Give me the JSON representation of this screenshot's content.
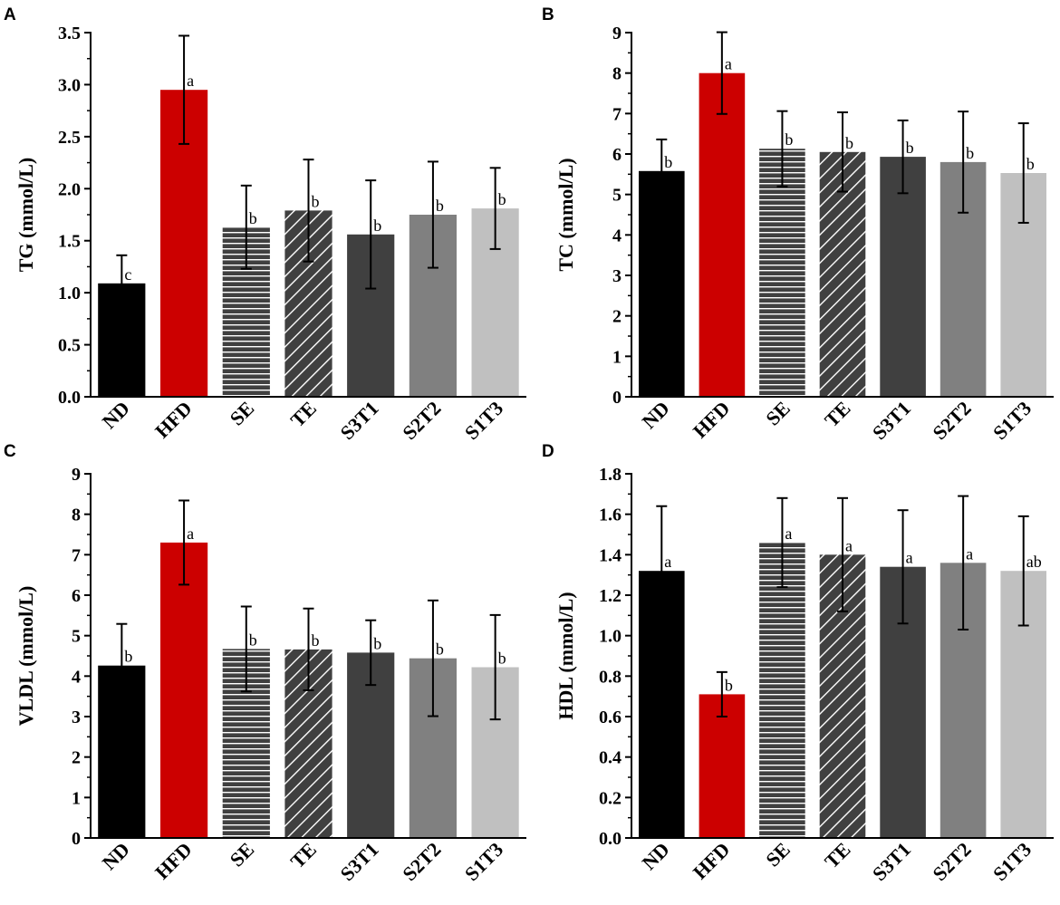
{
  "colors": {
    "ND": "#000000",
    "HFD": "#cc0000",
    "SE": "#404040",
    "TE": "#404040",
    "S3T1": "#404040",
    "S2T2": "#808080",
    "S1T3": "#c0c0c0"
  },
  "patterns": {
    "SE": "horizontal-stripes",
    "TE": "diagonal-stripes"
  },
  "chart_data": [
    {
      "panel": "A",
      "type": "bar",
      "ylabel": "TG (mmol/L)",
      "categories": [
        "ND",
        "HFD",
        "SE",
        "TE",
        "S3T1",
        "S2T2",
        "S1T3"
      ],
      "values": [
        1.09,
        2.95,
        1.63,
        1.79,
        1.56,
        1.75,
        1.81
      ],
      "errors": [
        0.27,
        0.52,
        0.4,
        0.49,
        0.52,
        0.51,
        0.39
      ],
      "sig": [
        "c",
        "a",
        "b",
        "b",
        "b",
        "b",
        "b"
      ],
      "ylim": [
        0,
        3.5
      ],
      "yticks": [
        "0.0",
        "0.5",
        "1.0",
        "1.5",
        "2.0",
        "2.5",
        "3.0",
        "3.5"
      ]
    },
    {
      "panel": "B",
      "type": "bar",
      "ylabel": "TC (mmol/L)",
      "categories": [
        "ND",
        "HFD",
        "SE",
        "TE",
        "S3T1",
        "S2T2",
        "S1T3"
      ],
      "values": [
        5.58,
        8.0,
        6.13,
        6.05,
        5.93,
        5.8,
        5.53
      ],
      "errors": [
        0.78,
        1.01,
        0.93,
        0.98,
        0.9,
        1.25,
        1.23
      ],
      "sig": [
        "b",
        "a",
        "b",
        "b",
        "b",
        "b",
        "b"
      ],
      "ylim": [
        0,
        9
      ],
      "yticks": [
        "0",
        "1",
        "2",
        "3",
        "4",
        "5",
        "6",
        "7",
        "8",
        "9"
      ]
    },
    {
      "panel": "C",
      "type": "bar",
      "ylabel": "VLDL (mmol/L)",
      "categories": [
        "ND",
        "HFD",
        "SE",
        "TE",
        "S3T1",
        "S2T2",
        "S1T3"
      ],
      "values": [
        4.26,
        7.3,
        4.67,
        4.66,
        4.58,
        4.44,
        4.22
      ],
      "errors": [
        1.03,
        1.04,
        1.05,
        1.01,
        0.8,
        1.43,
        1.29
      ],
      "sig": [
        "b",
        "a",
        "b",
        "b",
        "b",
        "b",
        "b"
      ],
      "ylim": [
        0,
        9
      ],
      "yticks": [
        "0",
        "1",
        "2",
        "3",
        "4",
        "5",
        "6",
        "7",
        "8",
        "9"
      ]
    },
    {
      "panel": "D",
      "type": "bar",
      "ylabel": "HDL (mmol/L)",
      "categories": [
        "ND",
        "HFD",
        "SE",
        "TE",
        "S3T1",
        "S2T2",
        "S1T3"
      ],
      "values": [
        1.32,
        0.71,
        1.46,
        1.4,
        1.34,
        1.36,
        1.32
      ],
      "errors": [
        0.32,
        0.11,
        0.22,
        0.28,
        0.28,
        0.33,
        0.27
      ],
      "sig": [
        "a",
        "b",
        "a",
        "a",
        "a",
        "a",
        "ab"
      ],
      "ylim": [
        0,
        1.8
      ],
      "yticks": [
        "0.0",
        "0.2",
        "0.4",
        "0.6",
        "0.8",
        "1.0",
        "1.2",
        "1.4",
        "1.6",
        "1.8"
      ]
    }
  ]
}
